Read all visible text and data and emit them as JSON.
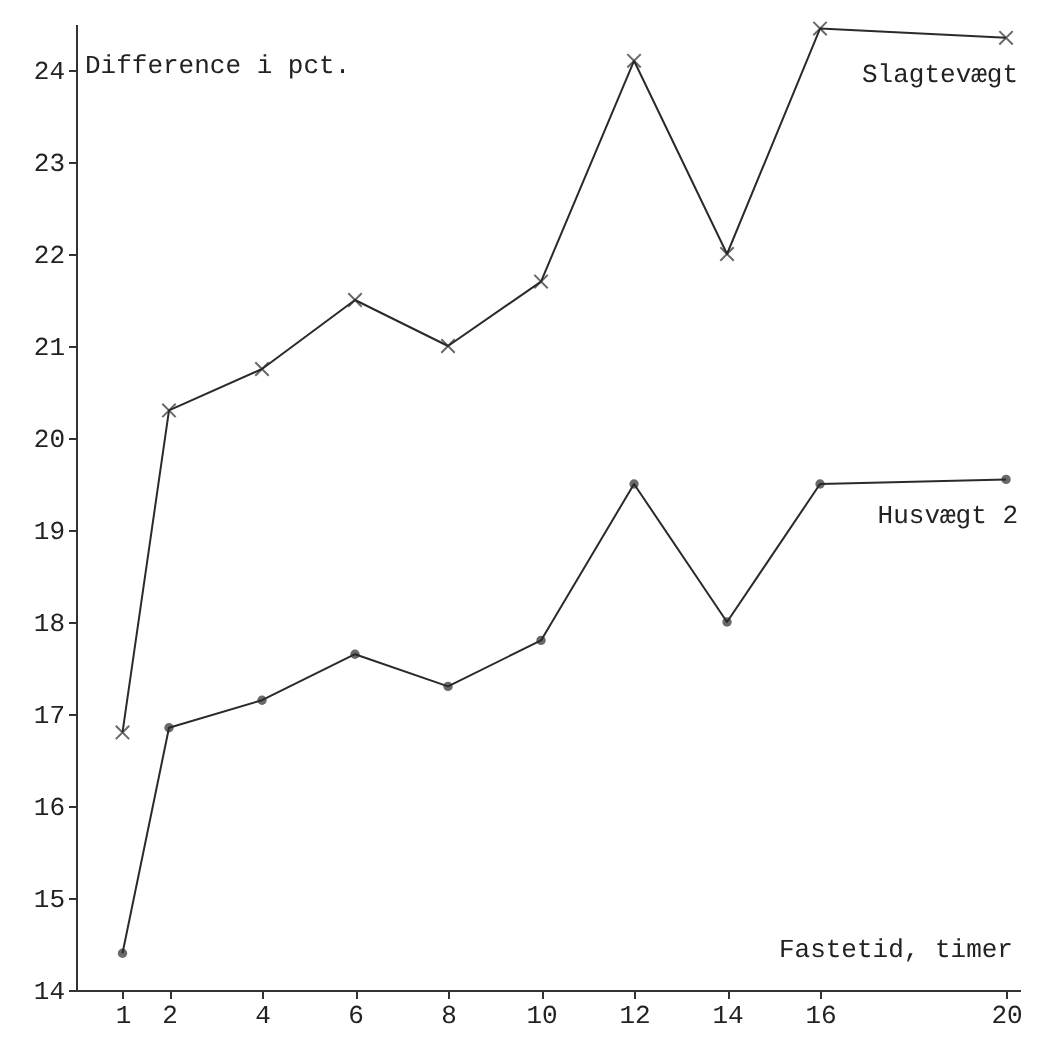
{
  "chart_data": {
    "type": "line",
    "xlabel": "Fastetid, timer",
    "ylabel": "Difference i pct.",
    "x": [
      1,
      2,
      4,
      6,
      8,
      10,
      12,
      14,
      16,
      20
    ],
    "series": [
      {
        "name": "Slagtevægt",
        "color": "#2a2a2a",
        "marker": "cross",
        "values": [
          16.8,
          20.3,
          20.75,
          21.5,
          21.0,
          21.7,
          24.1,
          22.0,
          24.45,
          24.35
        ]
      },
      {
        "name": "Husvægt 2",
        "color": "#2a2a2a",
        "marker": "circle",
        "values": [
          14.4,
          16.85,
          17.15,
          17.65,
          17.3,
          17.8,
          19.5,
          18.0,
          19.5,
          19.55
        ]
      }
    ],
    "xlim": [
      0,
      20.3
    ],
    "ylim": [
      14,
      24.5
    ],
    "xticks": [
      1,
      2,
      4,
      6,
      8,
      10,
      12,
      14,
      16,
      20
    ],
    "yticks": [
      14,
      15,
      16,
      17,
      18,
      19,
      20,
      21,
      22,
      23,
      24
    ],
    "grid": false,
    "line_style": "solid"
  }
}
